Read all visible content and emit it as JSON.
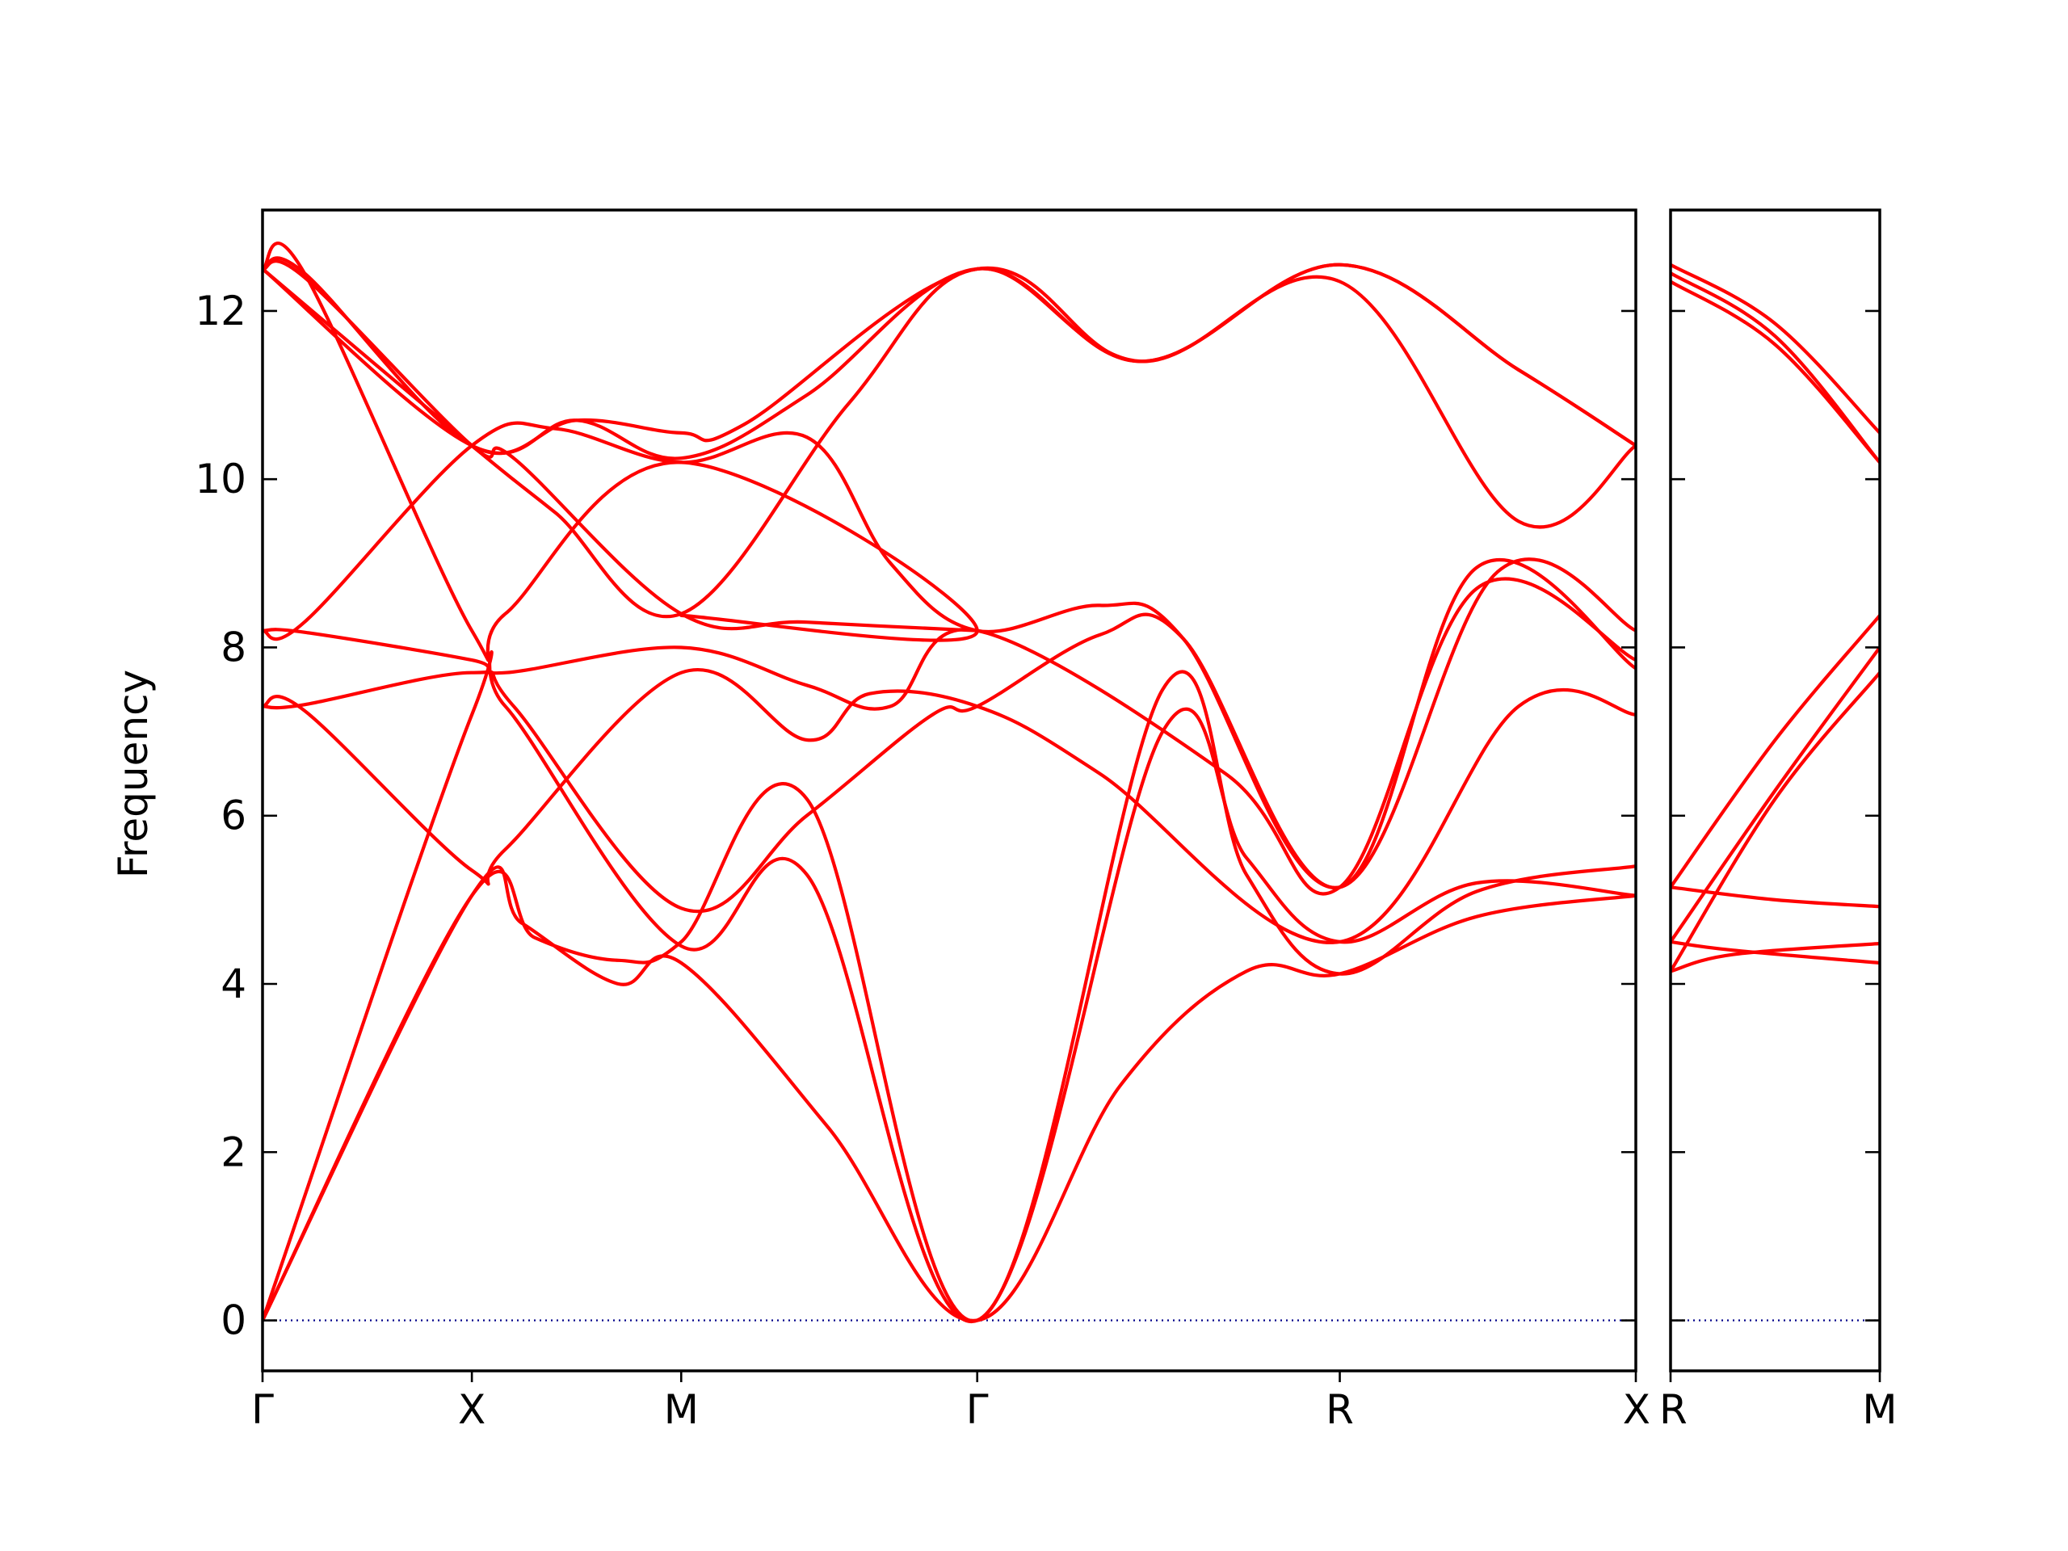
{
  "chart_data": {
    "type": "line",
    "ylabel": "Frequency",
    "ylim": [
      -0.6,
      13.2
    ],
    "yticks": [
      0,
      2,
      4,
      6,
      8,
      10,
      12
    ],
    "band_color": "#ff0000",
    "zero_line_color": "#00008b",
    "panels": [
      {
        "id": "main",
        "kpoints": [
          {
            "label": "Γ",
            "x": 0.0
          },
          {
            "label": "X",
            "x": 0.5
          },
          {
            "label": "M",
            "x": 1.0
          },
          {
            "label": "Γ",
            "x": 1.7071
          },
          {
            "label": "R",
            "x": 2.5731
          },
          {
            "label": "X",
            "x": 3.2802
          }
        ],
        "xlim": [
          0.0,
          3.2802
        ],
        "series": [
          {
            "values": [
              [
                0,
                0
              ],
              [
                0.5,
                5.05
              ],
              [
                0.62,
                4.72
              ],
              [
                0.85,
                4.0
              ],
              [
                1.0,
                4.25
              ],
              [
                1.35,
                2.3
              ],
              [
                1.7071,
                0
              ],
              [
                2.05,
                2.8
              ],
              [
                2.35,
                4.15
              ],
              [
                2.5731,
                4.12
              ],
              [
                2.9,
                4.8
              ],
              [
                3.2802,
                5.05
              ]
            ]
          },
          {
            "values": [
              [
                0,
                0
              ],
              [
                0.5,
                5.05
              ],
              [
                0.65,
                4.55
              ],
              [
                0.85,
                4.28
              ],
              [
                1.0,
                4.5
              ],
              [
                1.3,
                6.2
              ],
              [
                1.7071,
                0
              ],
              [
                2.15,
                7.5
              ],
              [
                2.35,
                5.3
              ],
              [
                2.5731,
                4.12
              ],
              [
                2.9,
                5.1
              ],
              [
                3.2802,
                5.4
              ]
            ]
          },
          {
            "values": [
              [
                0,
                0
              ],
              [
                0.5,
                7.2
              ],
              [
                0.58,
                7.3
              ],
              [
                1.0,
                4.45
              ],
              [
                1.3,
                5.3
              ],
              [
                1.7071,
                0
              ],
              [
                2.15,
                7.0
              ],
              [
                2.35,
                5.5
              ],
              [
                2.5731,
                4.5
              ],
              [
                2.9,
                5.2
              ],
              [
                3.2802,
                5.05
              ]
            ]
          },
          {
            "values": [
              [
                0,
                7.3
              ],
              [
                0.1,
                7.25
              ],
              [
                0.5,
                5.35
              ],
              [
                0.58,
                5.6
              ],
              [
                1.0,
                7.7
              ],
              [
                1.3,
                6.9
              ],
              [
                1.45,
                7.45
              ],
              [
                1.7071,
                7.3
              ],
              [
                2.0,
                6.5
              ],
              [
                2.5731,
                4.5
              ],
              [
                3.0,
                7.3
              ],
              [
                3.2802,
                7.2
              ]
            ]
          },
          {
            "values": [
              [
                0,
                7.3
              ],
              [
                0.1,
                7.32
              ],
              [
                0.5,
                7.7
              ],
              [
                0.6,
                7.3
              ],
              [
                1.0,
                4.9
              ],
              [
                1.3,
                6.0
              ],
              [
                1.6,
                7.2
              ],
              [
                1.7071,
                7.3
              ],
              [
                2.0,
                8.15
              ],
              [
                2.2,
                8.1
              ],
              [
                2.5731,
                5.15
              ],
              [
                2.9,
                8.95
              ],
              [
                3.2802,
                7.75
              ]
            ]
          },
          {
            "values": [
              [
                0,
                8.2
              ],
              [
                0.1,
                8.18
              ],
              [
                0.5,
                7.85
              ],
              [
                0.58,
                7.7
              ],
              [
                1.0,
                8.0
              ],
              [
                1.3,
                7.55
              ],
              [
                1.5,
                7.3
              ],
              [
                1.7071,
                8.2
              ],
              [
                2.3,
                6.5
              ],
              [
                2.5731,
                5.15
              ],
              [
                2.9,
                8.7
              ],
              [
                3.2802,
                7.85
              ]
            ]
          },
          {
            "values": [
              [
                0,
                8.2
              ],
              [
                0.1,
                8.3
              ],
              [
                0.5,
                10.4
              ],
              [
                0.7,
                10.6
              ],
              [
                1.0,
                10.2
              ],
              [
                1.3,
                10.5
              ],
              [
                1.5,
                9.0
              ],
              [
                1.7071,
                8.2
              ],
              [
                2.0,
                8.5
              ],
              [
                2.2,
                8.1
              ],
              [
                2.5731,
                5.15
              ],
              [
                2.95,
                8.9
              ],
              [
                3.2802,
                8.2
              ]
            ]
          },
          {
            "values": [
              [
                0,
                12.5
              ],
              [
                0.1,
                12.45
              ],
              [
                0.5,
                8.2
              ],
              [
                0.58,
                8.4
              ],
              [
                1.0,
                10.2
              ],
              [
                1.7071,
                8.2
              ],
              [
                1.0,
                8.38
              ]
            ]
          },
          {
            "values": [
              [
                0,
                12.5
              ],
              [
                0.1,
                12.4
              ],
              [
                0.5,
                10.4
              ],
              [
                0.6,
                10.25
              ],
              [
                1.0,
                8.4
              ],
              [
                1.3,
                8.3
              ],
              [
                1.7071,
                8.2
              ]
            ]
          },
          {
            "values": [
              [
                0,
                12.5
              ],
              [
                0.1,
                12.45
              ],
              [
                0.5,
                10.4
              ],
              [
                0.75,
                10.7
              ],
              [
                1.0,
                10.55
              ],
              [
                1.15,
                10.65
              ],
              [
                1.7071,
                12.5
              ],
              [
                2.1,
                11.4
              ],
              [
                2.5731,
                12.55
              ],
              [
                3.0,
                11.3
              ],
              [
                3.2802,
                10.4
              ]
            ]
          },
          {
            "values": [
              [
                0,
                12.5
              ],
              [
                0.5,
                10.4
              ],
              [
                0.75,
                10.7
              ],
              [
                1.0,
                10.25
              ],
              [
                1.3,
                11.0
              ],
              [
                1.7071,
                12.5
              ],
              [
                2.1,
                11.4
              ],
              [
                2.5731,
                12.55
              ],
              [
                3.0,
                11.3
              ],
              [
                3.2802,
                10.4
              ]
            ]
          },
          {
            "values": [
              [
                0,
                12.5
              ],
              [
                0.5,
                10.4
              ],
              [
                0.7,
                9.6
              ],
              [
                1.0,
                8.4
              ],
              [
                1.4,
                10.9
              ],
              [
                1.7071,
                12.5
              ],
              [
                2.1,
                11.4
              ],
              [
                2.5731,
                12.35
              ],
              [
                3.0,
                9.5
              ],
              [
                3.2802,
                10.4
              ]
            ]
          }
        ]
      },
      {
        "id": "side",
        "kpoints": [
          {
            "label": "R",
            "x": 0.0
          },
          {
            "label": "M",
            "x": 0.5
          }
        ],
        "xlim": [
          0.0,
          0.5
        ],
        "series": [
          {
            "values": [
              [
                0,
                4.15
              ],
              [
                0.15,
                4.35
              ],
              [
                0.5,
                4.48
              ]
            ]
          },
          {
            "values": [
              [
                0,
                4.5
              ],
              [
                0.15,
                4.4
              ],
              [
                0.5,
                4.25
              ]
            ]
          },
          {
            "values": [
              [
                0,
                5.15
              ],
              [
                0.25,
                5.0
              ],
              [
                0.5,
                4.92
              ]
            ]
          },
          {
            "values": [
              [
                0,
                4.15
              ],
              [
                0.25,
                6.2
              ],
              [
                0.5,
                7.7
              ]
            ]
          },
          {
            "values": [
              [
                0,
                4.5
              ],
              [
                0.25,
                6.3
              ],
              [
                0.5,
                8.0
              ]
            ]
          },
          {
            "values": [
              [
                0,
                5.15
              ],
              [
                0.25,
                6.9
              ],
              [
                0.5,
                8.38
              ]
            ]
          },
          {
            "values": [
              [
                0,
                12.35
              ],
              [
                0.25,
                11.6
              ],
              [
                0.5,
                10.2
              ]
            ]
          },
          {
            "values": [
              [
                0,
                12.45
              ],
              [
                0.25,
                11.7
              ],
              [
                0.5,
                10.2
              ]
            ]
          },
          {
            "values": [
              [
                0,
                12.55
              ],
              [
                0.25,
                11.85
              ],
              [
                0.5,
                10.55
              ]
            ]
          }
        ]
      }
    ]
  }
}
